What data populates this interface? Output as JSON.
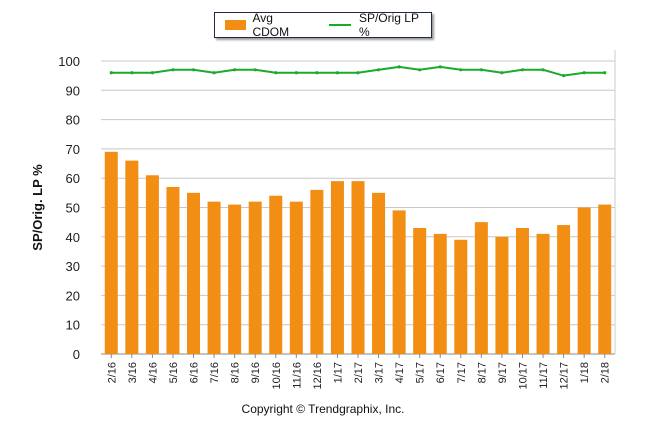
{
  "chart_data": {
    "type": "bar",
    "title": "",
    "xlabel": "",
    "ylabel": "SP/Orig. LP %",
    "ylim": [
      0,
      100
    ],
    "yticks": [
      0,
      10,
      20,
      30,
      40,
      50,
      60,
      70,
      80,
      90,
      100
    ],
    "grid": true,
    "legend_placement": "top",
    "categories": [
      "2/16",
      "3/16",
      "4/16",
      "5/16",
      "6/16",
      "7/16",
      "8/16",
      "9/16",
      "10/16",
      "11/16",
      "12/16",
      "1/17",
      "2/17",
      "3/17",
      "4/17",
      "5/17",
      "6/17",
      "7/17",
      "8/17",
      "9/17",
      "10/17",
      "11/17",
      "12/17",
      "1/18",
      "2/18"
    ],
    "series": [
      {
        "name": "Avg CDOM",
        "type": "bar",
        "color": "#f28e13",
        "values": [
          69,
          66,
          61,
          57,
          55,
          52,
          51,
          52,
          54,
          52,
          56,
          59,
          59,
          55,
          49,
          43,
          41,
          39,
          45,
          40,
          43,
          41,
          44,
          50,
          51
        ]
      },
      {
        "name": "SP/Orig LP %",
        "type": "line",
        "color": "#1aab2a",
        "values": [
          96,
          96,
          96,
          97,
          97,
          96,
          97,
          97,
          96,
          96,
          96,
          96,
          96,
          97,
          98,
          97,
          98,
          97,
          97,
          96,
          97,
          97,
          95,
          96,
          96
        ]
      }
    ]
  },
  "footer": {
    "copyright": "Copyright © Trendgraphix, Inc."
  }
}
